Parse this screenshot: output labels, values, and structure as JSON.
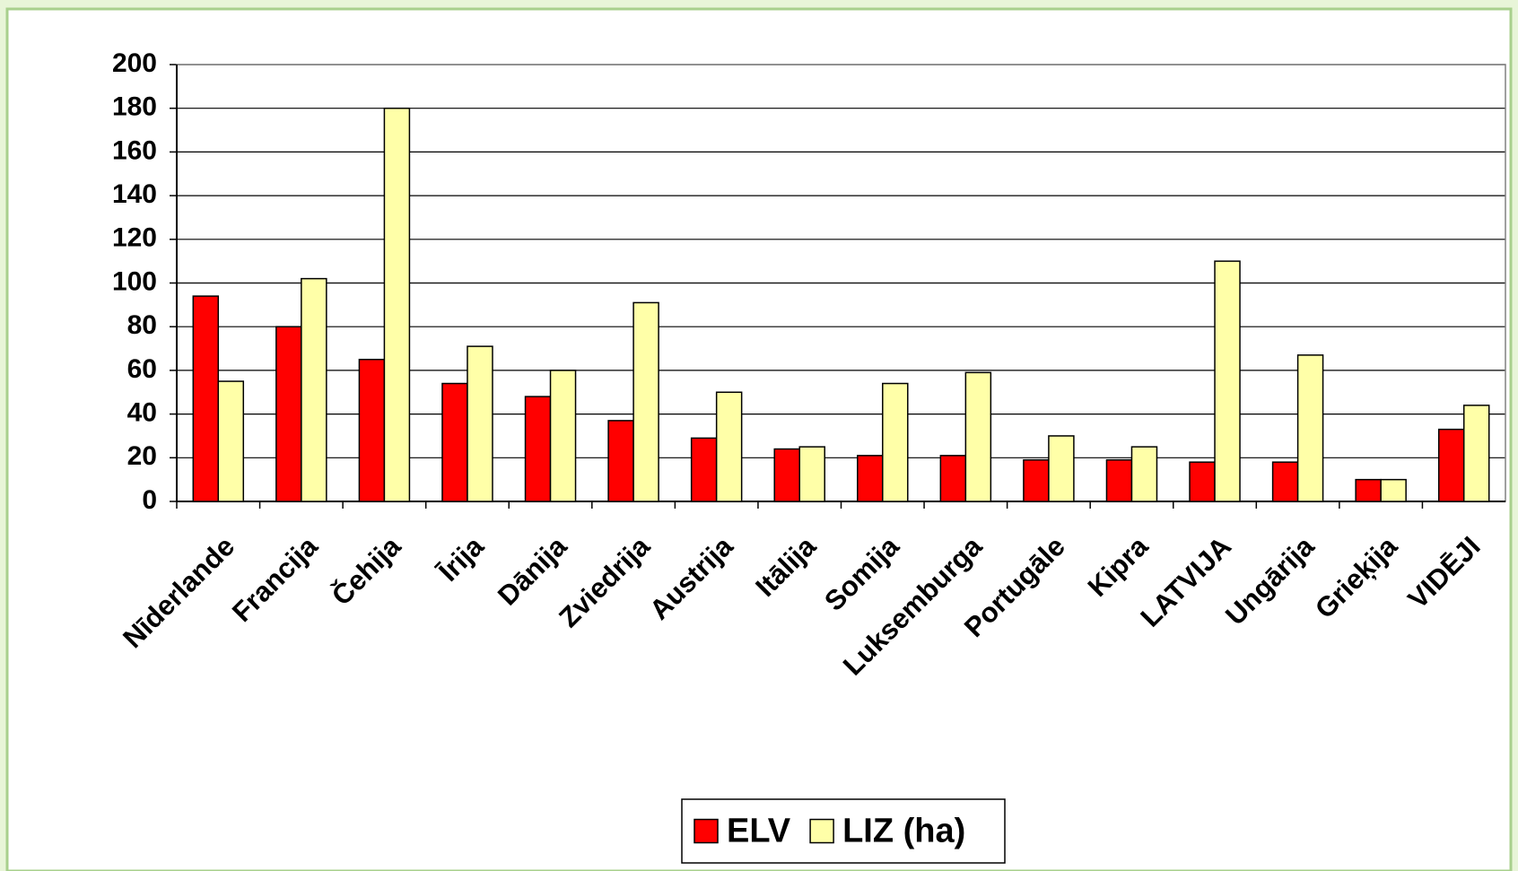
{
  "chart_data": {
    "type": "bar",
    "categories": [
      "Nīderlande",
      "Francija",
      "Čehija",
      "Īrija",
      "Dānija",
      "Zviedrija",
      "Austrija",
      "Itālija",
      "Somija",
      "Luksemburga",
      "Portugāle",
      "Kipra",
      "LATVIJA",
      "Ungārija",
      "Grieķija",
      "VIDĒJI"
    ],
    "series": [
      {
        "name": "ELV",
        "color": "#ff0000",
        "values": [
          94,
          80,
          65,
          54,
          48,
          37,
          29,
          24,
          21,
          21,
          19,
          19,
          18,
          18,
          10,
          33
        ]
      },
      {
        "name": "LIZ (ha)",
        "color": "#ffffa8",
        "values": [
          55,
          102,
          180,
          71,
          60,
          91,
          50,
          25,
          54,
          59,
          30,
          25,
          110,
          67,
          10,
          44
        ]
      }
    ],
    "ylim": [
      0,
      200
    ],
    "yticks": [
      0,
      20,
      40,
      60,
      80,
      100,
      120,
      140,
      160,
      180,
      200
    ],
    "grid": true,
    "legend": "bottom"
  }
}
